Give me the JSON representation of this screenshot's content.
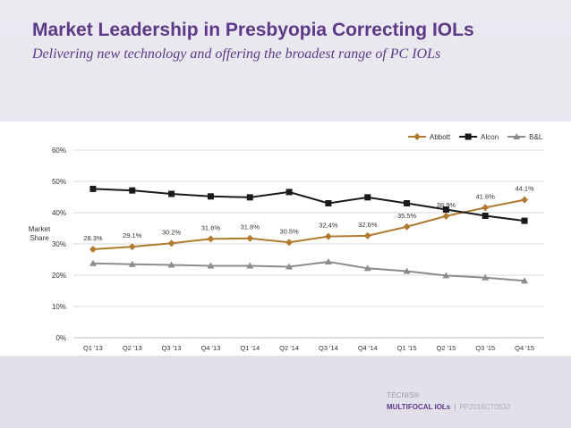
{
  "slide": {
    "title": "Market Leadership in Presbyopia Correcting IOLs",
    "subtitle": "Delivering new technology and offering the broadest range of  PC IOLs"
  },
  "footer": {
    "brand": "TECNIS®",
    "product": "MULTIFOCAL IOLs",
    "separator": "|",
    "code": "PP2016CT0532"
  },
  "chart_data": {
    "type": "line",
    "ylabel": "Market\nShare",
    "ylabel_lines": [
      "Market",
      "Share"
    ],
    "xlabel": "",
    "ylim": [
      0,
      60
    ],
    "y_ticks": [
      0,
      10,
      20,
      30,
      40,
      50,
      60
    ],
    "y_tick_labels": [
      "0%",
      "10%",
      "20%",
      "30%",
      "40%",
      "50%",
      "60%"
    ],
    "grid": true,
    "legend_position": "top-right",
    "categories": [
      "Q1 '13",
      "Q2 '13",
      "Q3 '13",
      "Q4 '13",
      "Q1 '14",
      "Q2 '14",
      "Q3 '14",
      "Q4 '14",
      "Q1 '15",
      "Q2 '15",
      "Q3 '15",
      "Q4 '15"
    ],
    "series": [
      {
        "name": "Abbott",
        "color": "#b07a30",
        "marker": "diamond",
        "values": [
          28.3,
          29.1,
          30.2,
          31.6,
          31.8,
          30.5,
          32.4,
          32.6,
          35.5,
          38.9,
          41.6,
          44.1
        ],
        "labels": [
          "28.3%",
          "29.1%",
          "30.2%",
          "31.6%",
          "31.8%",
          "30.5%",
          "32.4%",
          "32.6%",
          "35.5%",
          "38.9%",
          "41.6%",
          "44.1%"
        ]
      },
      {
        "name": "Alcon",
        "color": "#1a1a1a",
        "marker": "square",
        "values": [
          47.6,
          47.1,
          46.0,
          45.2,
          44.9,
          46.6,
          43.0,
          44.9,
          43.0,
          41.0,
          39.0,
          37.4
        ]
      },
      {
        "name": "B&L",
        "color": "#8c8c8c",
        "marker": "triangle",
        "values": [
          23.8,
          23.5,
          23.3,
          23.0,
          23.0,
          22.7,
          24.3,
          22.2,
          21.3,
          19.9,
          19.2,
          18.2
        ]
      }
    ]
  }
}
